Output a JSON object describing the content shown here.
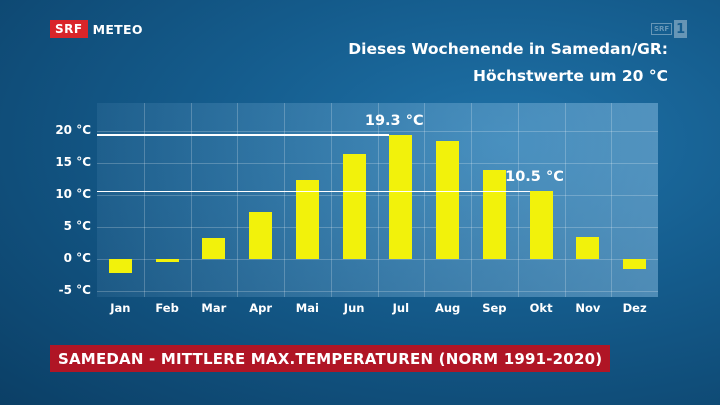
{
  "header": {
    "logo_brand": "SRF",
    "logo_text": "METEO",
    "channel_logo_small": "SRF",
    "channel_logo_number": "1",
    "headline_line1": "Dieses Wochenende in Samedan/GR:",
    "headline_line2": "Höchstwerte um 20 °C"
  },
  "banner": {
    "text": "SAMEDAN - MITTLERE MAX.TEMPERATUREN (NORM 1991-2020)"
  },
  "colors": {
    "bar": "#f2f20b",
    "banner": "#b01525",
    "brand": "#d9252a"
  },
  "chart_data": {
    "type": "bar",
    "categories": [
      "Jan",
      "Feb",
      "Mar",
      "Apr",
      "Mai",
      "Jun",
      "Jul",
      "Aug",
      "Sep",
      "Okt",
      "Nov",
      "Dez"
    ],
    "values": [
      -2.3,
      -0.5,
      3.2,
      7.3,
      12.3,
      16.4,
      19.3,
      18.3,
      13.9,
      10.5,
      3.4,
      -1.7
    ],
    "yticks": [
      20,
      15,
      10,
      5,
      0,
      -5
    ],
    "ytick_labels": [
      "20 °C",
      "15 °C",
      "10 °C",
      "5 °C",
      "0 °C",
      "-5 °C"
    ],
    "ylim": [
      -6,
      24.3
    ],
    "reference_lines": [
      {
        "value": 19.3,
        "label": "19.3 °C",
        "month_index": 6
      },
      {
        "value": 10.5,
        "label": "10.5 °C",
        "month_index": 9
      }
    ],
    "grid": true
  }
}
